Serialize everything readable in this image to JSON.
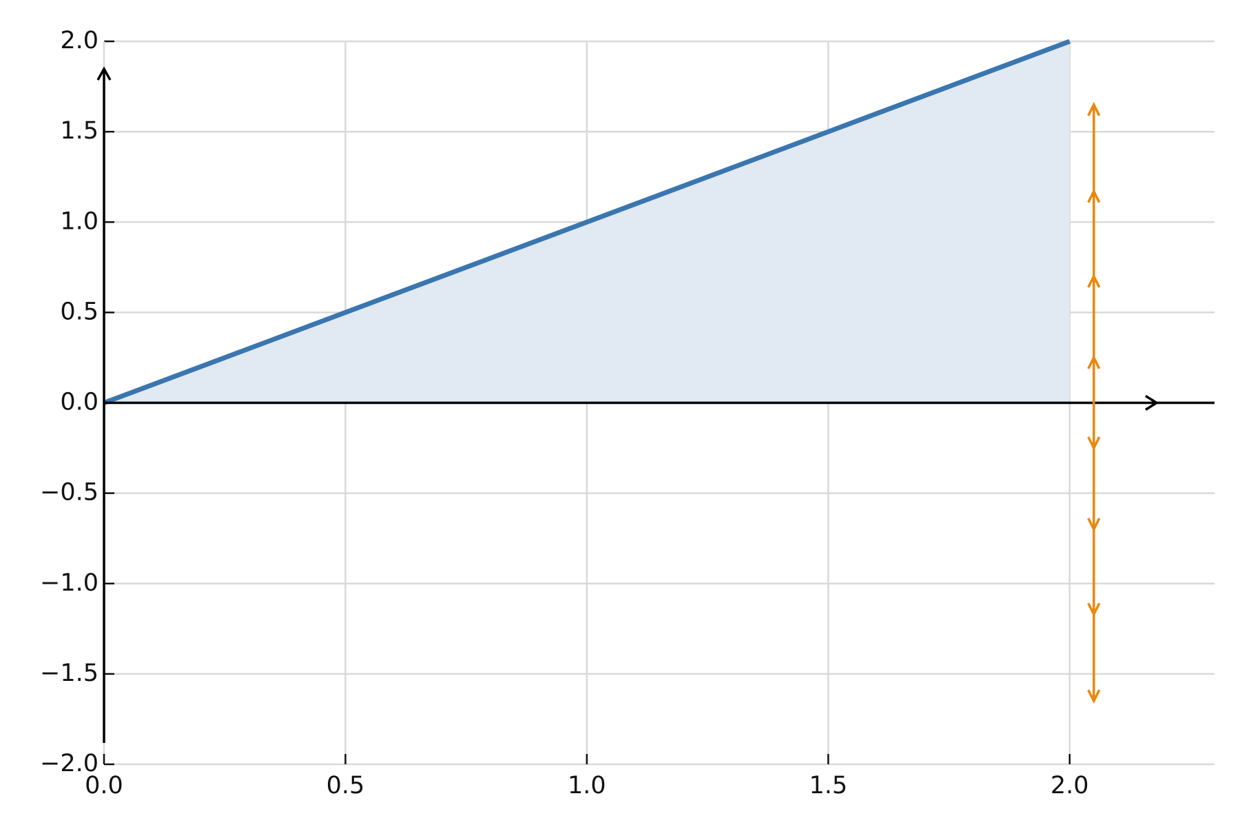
{
  "chart_data": {
    "type": "line",
    "x": [
      0,
      2
    ],
    "series": [
      {
        "color": "#3a76b0",
        "fill": "#e1e9f2",
        "values": [
          0,
          2
        ]
      }
    ],
    "xlim": [
      0,
      2.3
    ],
    "ylim": [
      -2,
      2
    ],
    "xticks": [
      {
        "value": 0,
        "label": "0.0"
      },
      {
        "value": 0.5,
        "label": "0.5"
      },
      {
        "value": 1,
        "label": "1.0"
      },
      {
        "value": 1.5,
        "label": "1.5"
      },
      {
        "value": 2,
        "label": "2.0"
      }
    ],
    "yticks": [
      {
        "value": -2,
        "label": "−2.0"
      },
      {
        "value": -1.5,
        "label": "−1.5"
      },
      {
        "value": -1,
        "label": "−1.0"
      },
      {
        "value": -0.5,
        "label": "−0.5"
      },
      {
        "value": 0,
        "label": "0.0"
      },
      {
        "value": 0.5,
        "label": "0.5"
      },
      {
        "value": 1,
        "label": "1.0"
      },
      {
        "value": 1.5,
        "label": "1.5"
      },
      {
        "value": 2,
        "label": "2.0"
      }
    ],
    "grid": true,
    "arrows": {
      "x": 2.05,
      "color": "#e8890c",
      "up": [
        0.25,
        0.7,
        1.17,
        1.65
      ],
      "down": [
        -0.25,
        -0.7,
        -1.17,
        -1.65
      ]
    }
  }
}
